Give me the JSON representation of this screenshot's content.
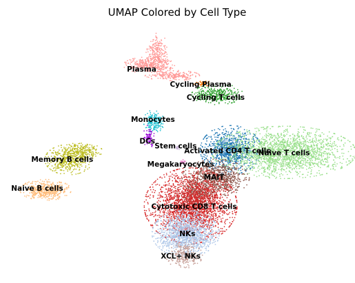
{
  "chart_data": {
    "type": "scatter",
    "title": "UMAP Colored by Cell Type",
    "xlabel": "",
    "ylabel": "",
    "axes_visible": false,
    "grid": false,
    "legend": "on data",
    "xlim": [
      0,
      100
    ],
    "ylim": [
      0,
      100
    ],
    "clusters": [
      {
        "name": "Plasma",
        "color": "#ff9896",
        "label_at": [
          40.8,
          82.6
        ],
        "blobs": [
          {
            "center": [
              43.0,
              84.5
            ],
            "spread": [
              3.2,
              1.4
            ],
            "n": 320
          },
          {
            "center": [
              45.5,
              89.5
            ],
            "spread": [
              1.4,
              3.4
            ],
            "n": 240
          },
          {
            "center": [
              50.0,
              80.2
            ],
            "spread": [
              3.4,
              0.9
            ],
            "n": 220
          }
        ]
      },
      {
        "name": "Cycling Plasma",
        "color": "#ff7f0e",
        "label_at": [
          58.5,
          76.4
        ],
        "blobs": [
          {
            "center": [
              59.0,
              77.0
            ],
            "spread": [
              1.0,
              0.6
            ],
            "n": 50
          }
        ]
      },
      {
        "name": "Cycling T cells",
        "color": "#2ca02c",
        "label_at": [
          63.0,
          71.0
        ],
        "blobs": [
          {
            "center": [
              63.5,
              72.5
            ],
            "spread": [
              3.2,
              1.8
            ],
            "n": 320
          }
        ]
      },
      {
        "name": "Monocytes",
        "color": "#17becf",
        "label_at": [
          44.2,
          62.0
        ],
        "blobs": [
          {
            "center": [
              44.5,
              61.3
            ],
            "spread": [
              1.3,
              2.0
            ],
            "n": 180
          }
        ]
      },
      {
        "name": "DCs",
        "color": "#9400d3",
        "label_at": [
          42.5,
          53.0
        ],
        "blobs": [
          {
            "center": [
              43.0,
              55.0
            ],
            "spread": [
              0.7,
              2.0
            ],
            "n": 80
          }
        ]
      },
      {
        "name": "Stem cells",
        "color": "#c5b0d5",
        "label_at": [
          51.0,
          51.0
        ],
        "blobs": [
          {
            "center": [
              51.5,
              50.2
            ],
            "spread": [
              0.4,
              0.6
            ],
            "n": 15
          }
        ]
      },
      {
        "name": "Megakaryocytes",
        "color": "#e377c2",
        "label_at": [
          52.5,
          43.5
        ],
        "blobs": [
          {
            "center": [
              53.0,
              44.5
            ],
            "spread": [
              0.4,
              0.6
            ],
            "n": 15
          }
        ]
      },
      {
        "name": "Activated CD4 T cells",
        "color": "#1f77b4",
        "label_at": [
          66.5,
          49.0
        ],
        "blobs": [
          {
            "center": [
              67.5,
              49.5
            ],
            "spread": [
              3.8,
              4.2
            ],
            "n": 900
          }
        ]
      },
      {
        "name": "Naive T cells",
        "color": "#98df8a",
        "label_at": [
          83.5,
          48.2
        ],
        "blobs": [
          {
            "center": [
              83.5,
              48.5
            ],
            "spread": [
              9.0,
              4.5
            ],
            "n": 2000
          }
        ]
      },
      {
        "name": "MAIT",
        "color": "#8c564b",
        "label_at": [
          62.5,
          38.0
        ],
        "blobs": [
          {
            "center": [
              63.0,
              38.0
            ],
            "spread": [
              4.2,
              3.2
            ],
            "n": 800
          },
          {
            "center": [
              57.0,
              30.0
            ],
            "spread": [
              2.5,
              3.5
            ],
            "n": 400
          }
        ]
      },
      {
        "name": "Cytotoxic CD8 T cells",
        "color": "#d62728",
        "label_at": [
          56.5,
          26.0
        ],
        "blobs": [
          {
            "center": [
              55.5,
              26.5
            ],
            "spread": [
              5.8,
              6.5
            ],
            "n": 2200
          }
        ]
      },
      {
        "name": "NKs",
        "color": "#aec7e8",
        "label_at": [
          54.5,
          14.8
        ],
        "blobs": [
          {
            "center": [
              54.0,
              15.0
            ],
            "spread": [
              4.2,
              4.0
            ],
            "n": 1300
          }
        ]
      },
      {
        "name": "XCL+ NKs",
        "color": "#c49c94",
        "label_at": [
          52.5,
          5.5
        ],
        "blobs": [
          {
            "center": [
              53.5,
              6.0
            ],
            "spread": [
              2.3,
              2.2
            ],
            "n": 250
          }
        ]
      },
      {
        "name": "Memory B cells",
        "color": "#bcbd22",
        "label_at": [
          17.0,
          45.5
        ],
        "blobs": [
          {
            "center": [
              19.0,
              45.5
            ],
            "spread": [
              3.0,
              2.6
            ],
            "n": 450
          },
          {
            "center": [
              23.0,
              49.0
            ],
            "spread": [
              2.5,
              1.5
            ],
            "n": 200
          }
        ]
      },
      {
        "name": "Naive B cells",
        "color": "#ffbb78",
        "label_at": [
          9.5,
          33.5
        ],
        "blobs": [
          {
            "center": [
              12.0,
              33.0
            ],
            "spread": [
              3.2,
              1.8
            ],
            "n": 480
          }
        ]
      }
    ]
  }
}
